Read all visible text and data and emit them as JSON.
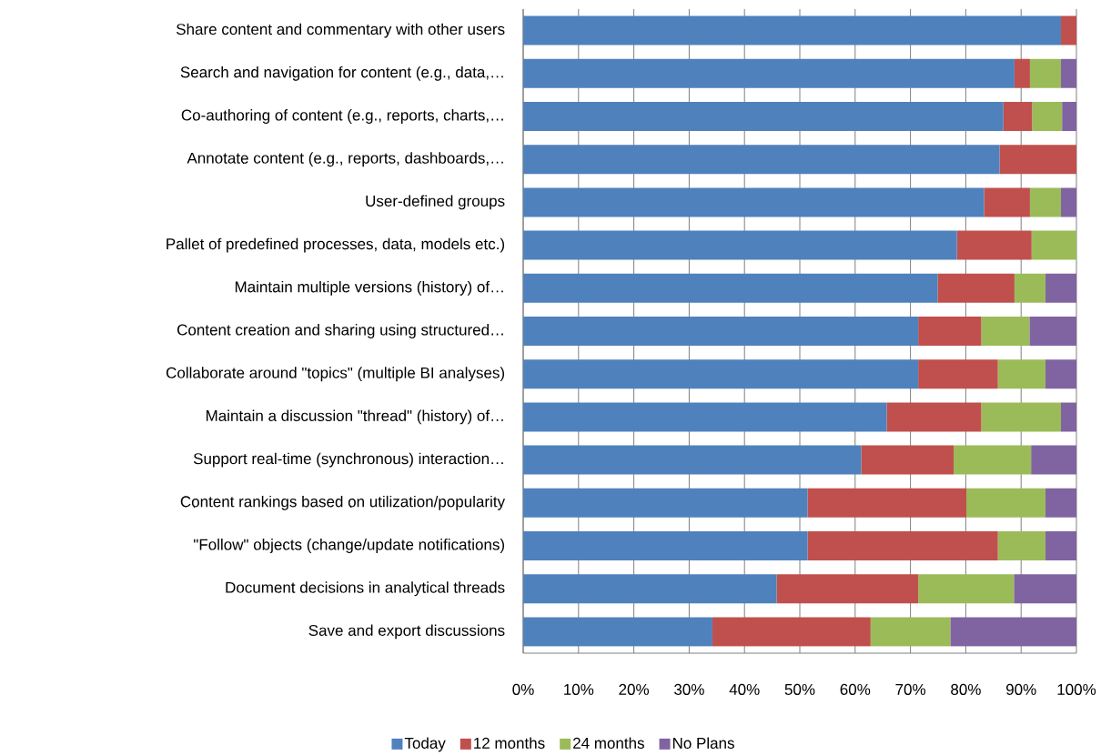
{
  "chart_data": {
    "type": "bar",
    "orientation": "horizontal",
    "stacked": true,
    "categories": [
      "Share content and commentary with other users",
      "Search and navigation for content (e.g., data,…",
      "Co-authoring of content (e.g., reports, charts,…",
      "Annotate content (e.g., reports, dashboards,…",
      "User-defined groups",
      "Pallet of predefined processes, data, models etc.)",
      "Maintain multiple versions (history) of…",
      "Content creation and sharing using structured…",
      "Collaborate around \"topics\" (multiple BI analyses)",
      "Maintain a discussion \"thread\" (history) of…",
      "Support real-time (synchronous) interaction…",
      "Content rankings based on utilization/popularity",
      "\"Follow\" objects (change/update notifications)",
      "Document decisions in analytical threads",
      "Save and export discussions"
    ],
    "series": [
      {
        "name": "Today",
        "color": "#4f81bd",
        "values": [
          97.2,
          88.8,
          86.8,
          86.1,
          83.3,
          78.4,
          74.9,
          71.4,
          71.4,
          65.7,
          61.1,
          51.4,
          51.4,
          45.8,
          34.2
        ]
      },
      {
        "name": "12 months",
        "color": "#c0504d",
        "values": [
          2.8,
          2.8,
          5.2,
          13.9,
          8.3,
          13.5,
          13.9,
          11.4,
          14.4,
          17.1,
          16.7,
          28.7,
          34.4,
          25.6,
          28.6
        ]
      },
      {
        "name": "24 months",
        "color": "#9bbb59",
        "values": [
          0,
          5.6,
          5.4,
          0,
          5.6,
          8.1,
          5.6,
          8.7,
          8.6,
          14.4,
          14,
          14.3,
          8.6,
          17.3,
          14.4
        ]
      },
      {
        "name": "No Plans",
        "color": "#8064a2",
        "values": [
          0,
          2.8,
          2.6,
          0,
          2.8,
          0,
          5.6,
          8.5,
          5.6,
          2.8,
          8.2,
          5.6,
          5.6,
          11.3,
          22.8
        ]
      }
    ],
    "xlim": [
      0,
      100
    ],
    "xticks": [
      {
        "value": 0,
        "label": "0%"
      },
      {
        "value": 10,
        "label": "10%"
      },
      {
        "value": 20,
        "label": "20%"
      },
      {
        "value": 30,
        "label": "30%"
      },
      {
        "value": 40,
        "label": "40%"
      },
      {
        "value": 50,
        "label": "50%"
      },
      {
        "value": 60,
        "label": "60%"
      },
      {
        "value": 70,
        "label": "70%"
      },
      {
        "value": 80,
        "label": "80%"
      },
      {
        "value": 90,
        "label": "90%"
      },
      {
        "value": 100,
        "label": "100%"
      }
    ],
    "grid": "x",
    "legend": "bottom"
  }
}
